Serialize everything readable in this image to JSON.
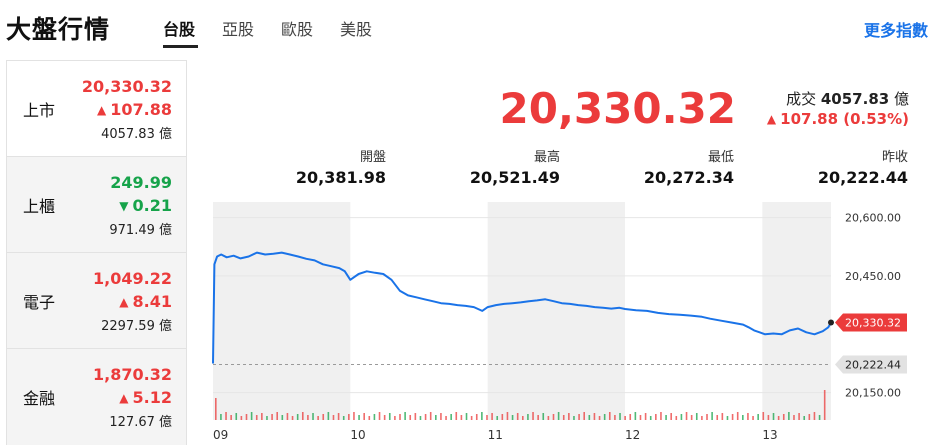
{
  "header": {
    "title": "大盤行情",
    "tabs": [
      {
        "label": "台股",
        "active": true
      },
      {
        "label": "亞股",
        "active": false
      },
      {
        "label": "歐股",
        "active": false
      },
      {
        "label": "美股",
        "active": false
      }
    ],
    "more_link": "更多指數"
  },
  "sidebar": {
    "items": [
      {
        "name": "上市",
        "value": "20,330.32",
        "change": "107.88",
        "direction": "up",
        "volume": "4057.83 億"
      },
      {
        "name": "上櫃",
        "value": "249.99",
        "change": "0.21",
        "direction": "down",
        "volume": "971.49 億"
      },
      {
        "name": "電子",
        "value": "1,049.22",
        "change": "8.41",
        "direction": "up",
        "volume": "2297.59 億"
      },
      {
        "name": "金融",
        "value": "1,870.32",
        "change": "5.12",
        "direction": "up",
        "volume": "127.67 億"
      }
    ]
  },
  "quote": {
    "price": "20,330.32",
    "volume_label": "成交",
    "volume_value": "4057.83",
    "volume_unit": "億",
    "change_text": "107.88 (0.53%)",
    "stats": [
      {
        "label": "開盤",
        "value": "20,381.98"
      },
      {
        "label": "最高",
        "value": "20,521.49"
      },
      {
        "label": "最低",
        "value": "20,272.34"
      },
      {
        "label": "昨收",
        "value": "20,222.44"
      }
    ]
  },
  "icons": {
    "up": "triangle-up-icon",
    "down": "triangle-down-icon"
  },
  "colors": {
    "up": "#eb3b3b",
    "down": "#16a34a",
    "line": "#1a73e8",
    "more_link": "#1a73e8"
  },
  "chart_data": {
    "type": "line",
    "x_labels": [
      "09",
      "10",
      "11",
      "12",
      "13"
    ],
    "x_hours": [
      9,
      10,
      11,
      12,
      13
    ],
    "x_range": [
      9,
      13.5
    ],
    "y_ticks": [
      "20,600.00",
      "20,450.00",
      "20,150.00"
    ],
    "y_tick_values": [
      20600,
      20450,
      20150
    ],
    "y_range": [
      20090,
      20640
    ],
    "last_value": 20330.32,
    "last_label": "20,330.32",
    "prev_close": 20222.44,
    "prev_close_label": "20,222.44",
    "series": [
      {
        "x": [
          9.0,
          9.01,
          9.03,
          9.06,
          9.1,
          9.15,
          9.2,
          9.26,
          9.32,
          9.38,
          9.44,
          9.5,
          9.56,
          9.62,
          9.68,
          9.74,
          9.8,
          9.86,
          9.92,
          9.96,
          10.0,
          10.06,
          10.12,
          10.18,
          10.24,
          10.3,
          10.36,
          10.42,
          10.48,
          10.54,
          10.6,
          10.66,
          10.72,
          10.78,
          10.84,
          10.9,
          10.96,
          11.0,
          11.06,
          11.12,
          11.18,
          11.24,
          11.3,
          11.36,
          11.42,
          11.48,
          11.54,
          11.6,
          11.66,
          11.72,
          11.78,
          11.84,
          11.9,
          11.96,
          12.0,
          12.08,
          12.16,
          12.24,
          12.32,
          12.4,
          12.48,
          12.56,
          12.62,
          12.7,
          12.78,
          12.86,
          12.9,
          12.94,
          12.98,
          13.02,
          13.08,
          13.14,
          13.2,
          13.26,
          13.32,
          13.38,
          13.44,
          13.48,
          13.5
        ],
        "y": [
          20225,
          20480,
          20500,
          20505,
          20498,
          20502,
          20495,
          20500,
          20510,
          20505,
          20507,
          20510,
          20505,
          20500,
          20494,
          20490,
          20480,
          20475,
          20470,
          20462,
          20440,
          20455,
          20462,
          20458,
          20455,
          20440,
          20412,
          20400,
          20395,
          20390,
          20385,
          20380,
          20378,
          20375,
          20373,
          20370,
          20360,
          20370,
          20375,
          20378,
          20380,
          20382,
          20385,
          20387,
          20390,
          20385,
          20380,
          20378,
          20375,
          20373,
          20370,
          20368,
          20366,
          20368,
          20365,
          20362,
          20360,
          20355,
          20352,
          20350,
          20348,
          20345,
          20340,
          20335,
          20330,
          20325,
          20318,
          20310,
          20305,
          20300,
          20302,
          20300,
          20310,
          20315,
          20305,
          20300,
          20308,
          20318,
          20330
        ]
      }
    ],
    "volume_bars": 120
  }
}
